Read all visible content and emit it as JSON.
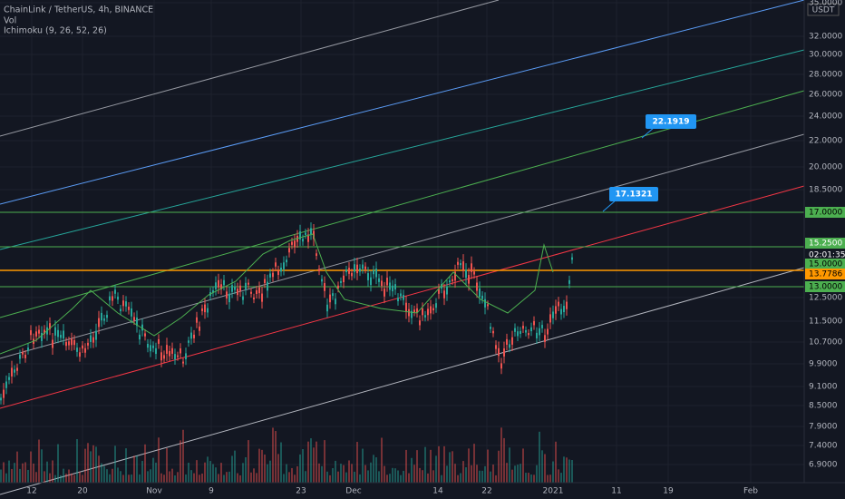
{
  "header": {
    "symbol": "ChainLink / TetherUS, 4h, BINANCE",
    "volume": "Vol",
    "indicator": "Ichimoku (9, 26, 52, 26)"
  },
  "price_axis": {
    "currency": "USDT",
    "labels": [
      "35.0000",
      "32.0000",
      "30.0000",
      "28.0000",
      "26.0000",
      "24.0000",
      "22.0000",
      "20.0000",
      "18.5000",
      "12.5000",
      "11.5000",
      "10.7000",
      "9.9000",
      "9.1000",
      "8.5000",
      "7.9000",
      "7.4000",
      "6.9000"
    ],
    "badges": [
      "17.0000",
      "15.2500",
      "02:01:35",
      "15.0000",
      "13.7786",
      "13.0000"
    ]
  },
  "time_axis": {
    "labels": [
      "12",
      "20",
      "Nov",
      "9",
      "23",
      "Dec",
      "14",
      "22",
      "2021",
      "11",
      "19",
      "Feb"
    ]
  },
  "callouts": [
    "22.1919",
    "17.1321"
  ]
}
